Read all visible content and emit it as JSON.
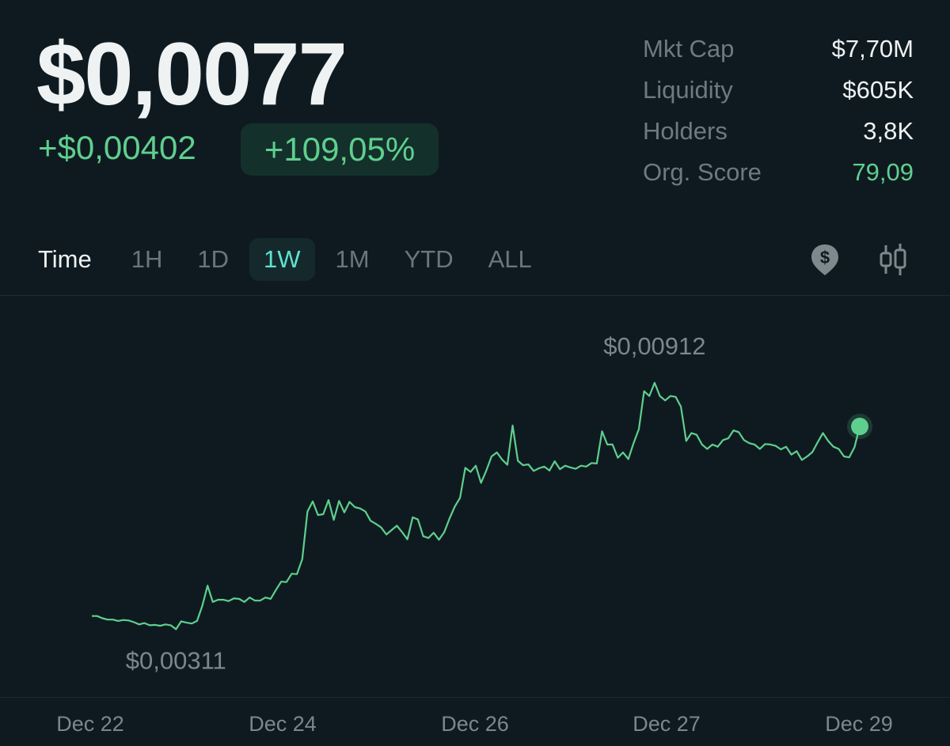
{
  "header": {
    "price": "$0,0077",
    "change_abs": "+$0,00402",
    "change_pct": "+109,05%"
  },
  "stats": [
    {
      "label": "Mkt Cap",
      "value": "$7,70M",
      "accent": false
    },
    {
      "label": "Liquidity",
      "value": "$605K",
      "accent": false
    },
    {
      "label": "Holders",
      "value": "3,8K",
      "accent": false
    },
    {
      "label": "Org. Score",
      "value": "79,09",
      "accent": true
    }
  ],
  "tabs": {
    "label": "Time",
    "items": [
      "1H",
      "1D",
      "1W",
      "1M",
      "YTD",
      "ALL"
    ],
    "active": "1W"
  },
  "icons": {
    "price_marker": "dollar-pin-icon",
    "candles": "candlestick-icon"
  },
  "colors": {
    "accent_green": "#5fcf8e",
    "active_tab": "#5fe3d0",
    "background": "#0f1a20"
  },
  "chart_data": {
    "type": "line",
    "x_labels": [
      "Dec 22",
      "Dec 24",
      "Dec 26",
      "Dec 27",
      "Dec 29"
    ],
    "high_label": "$0,00912",
    "low_label": "$0,00311",
    "ylim": [
      0.0031,
      0.0092
    ],
    "values": [
      0.00341,
      0.00341,
      0.00336,
      0.00333,
      0.00333,
      0.0033,
      0.00332,
      0.00331,
      0.00327,
      0.00322,
      0.00325,
      0.0032,
      0.00321,
      0.00319,
      0.00322,
      0.0032,
      0.00311,
      0.00329,
      0.00326,
      0.00324,
      0.0033,
      0.00364,
      0.0041,
      0.00373,
      0.00378,
      0.00378,
      0.00375,
      0.00381,
      0.0038,
      0.00373,
      0.00383,
      0.00376,
      0.00376,
      0.00383,
      0.0038,
      0.004,
      0.00419,
      0.00418,
      0.00437,
      0.00436,
      0.0047,
      0.00578,
      0.00601,
      0.0057,
      0.00572,
      0.00604,
      0.00559,
      0.00602,
      0.00576,
      0.006,
      0.00588,
      0.00585,
      0.00578,
      0.00557,
      0.0055,
      0.00542,
      0.00526,
      0.00536,
      0.00546,
      0.00531,
      0.00515,
      0.00565,
      0.0056,
      0.00522,
      0.00518,
      0.0053,
      0.00514,
      0.00531,
      0.00562,
      0.00589,
      0.00609,
      0.00677,
      0.00668,
      0.00682,
      0.00643,
      0.00671,
      0.00703,
      0.00712,
      0.00696,
      0.00684,
      0.00773,
      0.00693,
      0.00683,
      0.00685,
      0.0067,
      0.00676,
      0.0068,
      0.00671,
      0.00692,
      0.00674,
      0.00682,
      0.00678,
      0.00675,
      0.00682,
      0.0068,
      0.00688,
      0.00687,
      0.0076,
      0.0073,
      0.0073,
      0.007,
      0.00712,
      0.00697,
      0.00733,
      0.00765,
      0.00851,
      0.0084,
      0.0087,
      0.0084,
      0.0083,
      0.0084,
      0.00838,
      0.00816,
      0.00738,
      0.00756,
      0.00752,
      0.0073,
      0.0072,
      0.0073,
      0.00725,
      0.0074,
      0.00744,
      0.00762,
      0.00758,
      0.0074,
      0.00733,
      0.0073,
      0.0072,
      0.00731,
      0.0073,
      0.00727,
      0.00719,
      0.00725,
      0.00707,
      0.00715,
      0.00695,
      0.00703,
      0.00713,
      0.00735,
      0.00756,
      0.00738,
      0.00725,
      0.0072,
      0.00703,
      0.00701,
      0.00724,
      0.00771
    ]
  }
}
